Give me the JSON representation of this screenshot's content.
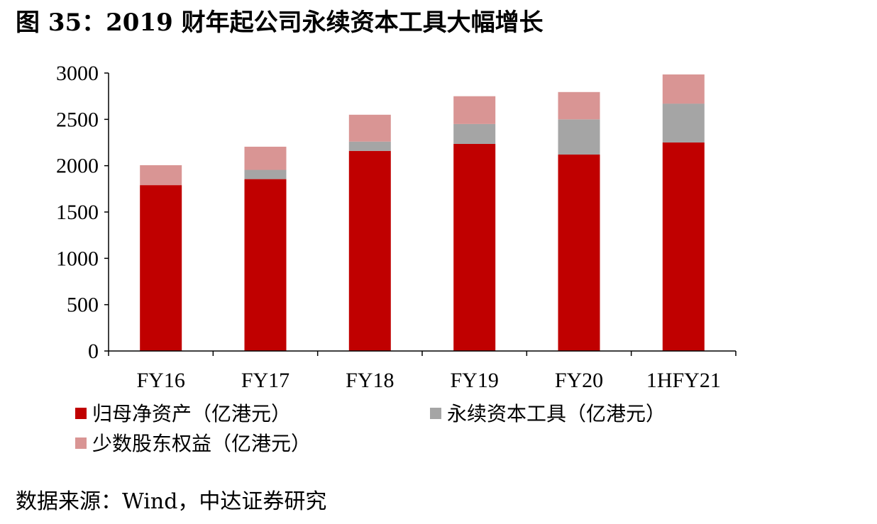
{
  "title": "图 35：2019 财年起公司永续资本工具大幅增长",
  "source": "数据来源：Wind，中达证券研究",
  "colors": {
    "series_0": "#c00000",
    "series_1": "#a5a5a5",
    "series_2": "#d99594",
    "axis": "#000000"
  },
  "chart_data": {
    "type": "bar",
    "stacked": true,
    "categories": [
      "FY16",
      "FY17",
      "FY18",
      "FY19",
      "FY20",
      "1HFY21"
    ],
    "series": [
      {
        "name": "归母净资产（亿港元）",
        "values": [
          1790,
          1855,
          2160,
          2235,
          2120,
          2250
        ]
      },
      {
        "name": "永续资本工具（亿港元）",
        "values": [
          0,
          100,
          100,
          215,
          380,
          420
        ]
      },
      {
        "name": "少数股东权益（亿港元）",
        "values": [
          215,
          250,
          290,
          300,
          295,
          315
        ]
      }
    ],
    "ylim": [
      0,
      3000
    ],
    "yticks": [
      0,
      500,
      1000,
      1500,
      2000,
      2500,
      3000
    ],
    "grid": false,
    "legend": "bottom"
  }
}
